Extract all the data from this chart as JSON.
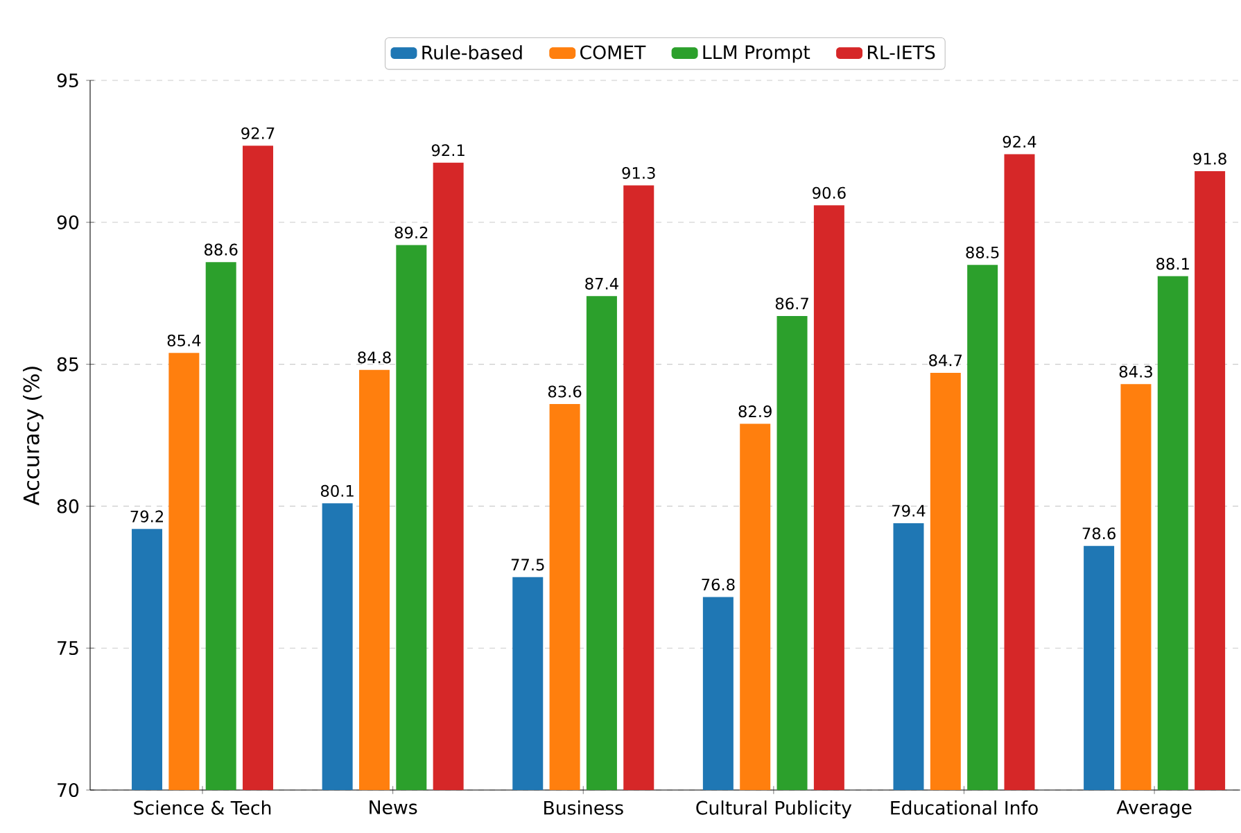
{
  "chart_data": {
    "type": "bar",
    "ylabel": "Accuracy (%)",
    "categories": [
      "Science & Tech",
      "News",
      "Business",
      "Cultural Publicity",
      "Educational Info",
      "Average"
    ],
    "series": [
      {
        "name": "Rule-based",
        "color": "#1f77b4",
        "values": [
          79.2,
          80.1,
          77.5,
          76.8,
          79.4,
          78.6
        ]
      },
      {
        "name": "COMET",
        "color": "#ff7f0e",
        "values": [
          85.4,
          84.8,
          83.6,
          82.9,
          84.7,
          84.3
        ]
      },
      {
        "name": "LLM Prompt",
        "color": "#2ca02c",
        "values": [
          88.6,
          89.2,
          87.4,
          86.7,
          88.5,
          88.1
        ]
      },
      {
        "name": "RL-IETS",
        "color": "#d62728",
        "values": [
          92.7,
          92.1,
          91.3,
          90.6,
          92.4,
          91.8
        ]
      }
    ],
    "ylim": [
      70,
      95
    ],
    "yticks": [
      70,
      75,
      80,
      85,
      90,
      95
    ],
    "grid": "y",
    "legend": "top",
    "data_labels": true
  }
}
